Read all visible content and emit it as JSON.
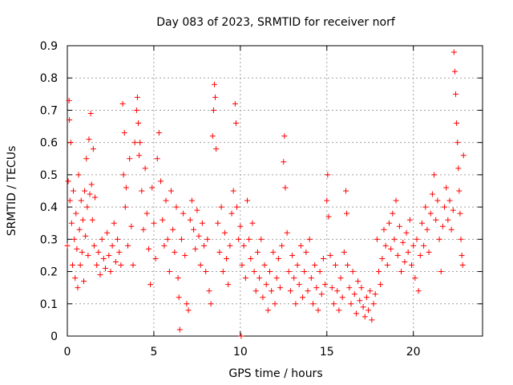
{
  "chart_data": {
    "type": "scatter",
    "title": "Day 083 of 2023, SRMTID for receiver norf",
    "xlabel": "GPS time / hours",
    "ylabel": "SRMTID / TECUs",
    "xlim": [
      0,
      24
    ],
    "ylim": [
      0,
      0.9
    ],
    "xticks": [
      0,
      5,
      10,
      15,
      20
    ],
    "yticks": [
      0,
      0.1,
      0.2,
      0.3,
      0.4,
      0.5,
      0.6,
      0.7,
      0.8,
      0.9
    ],
    "xtick_labels": [
      "0",
      "5",
      "10",
      "15",
      "20"
    ],
    "ytick_labels": [
      "0",
      "0.1",
      "0.2",
      "0.3",
      "0.4",
      "0.5",
      "0.6",
      "0.7",
      "0.8",
      "0.9"
    ],
    "grid": true,
    "marker": "+",
    "color": "#ff0000",
    "series": [
      {
        "name": "SRMTID",
        "points": [
          [
            0.0,
            0.28
          ],
          [
            0.05,
            0.48
          ],
          [
            0.1,
            0.73
          ],
          [
            0.12,
            0.67
          ],
          [
            0.15,
            0.42
          ],
          [
            0.2,
            0.6
          ],
          [
            0.25,
            0.35
          ],
          [
            0.3,
            0.22
          ],
          [
            0.35,
            0.45
          ],
          [
            0.4,
            0.3
          ],
          [
            0.45,
            0.18
          ],
          [
            0.5,
            0.38
          ],
          [
            0.55,
            0.27
          ],
          [
            0.6,
            0.15
          ],
          [
            0.65,
            0.5
          ],
          [
            0.7,
            0.33
          ],
          [
            0.75,
            0.22
          ],
          [
            0.8,
            0.42
          ],
          [
            0.85,
            0.26
          ],
          [
            0.9,
            0.36
          ],
          [
            0.95,
            0.17
          ],
          [
            1.0,
            0.45
          ],
          [
            1.05,
            0.31
          ],
          [
            1.1,
            0.55
          ],
          [
            1.15,
            0.4
          ],
          [
            1.2,
            0.25
          ],
          [
            1.25,
            0.61
          ],
          [
            1.3,
            0.44
          ],
          [
            1.35,
            0.69
          ],
          [
            1.4,
            0.47
          ],
          [
            1.45,
            0.36
          ],
          [
            1.5,
            0.58
          ],
          [
            1.55,
            0.28
          ],
          [
            1.6,
            0.43
          ],
          [
            1.7,
            0.22
          ],
          [
            1.8,
            0.26
          ],
          [
            1.9,
            0.19
          ],
          [
            2.0,
            0.3
          ],
          [
            2.1,
            0.24
          ],
          [
            2.2,
            0.21
          ],
          [
            2.3,
            0.32
          ],
          [
            2.4,
            0.25
          ],
          [
            2.5,
            0.2
          ],
          [
            2.6,
            0.28
          ],
          [
            2.7,
            0.35
          ],
          [
            2.8,
            0.23
          ],
          [
            2.9,
            0.3
          ],
          [
            3.0,
            0.26
          ],
          [
            3.1,
            0.22
          ],
          [
            3.2,
            0.72
          ],
          [
            3.25,
            0.5
          ],
          [
            3.3,
            0.63
          ],
          [
            3.35,
            0.4
          ],
          [
            3.4,
            0.46
          ],
          [
            3.5,
            0.28
          ],
          [
            3.6,
            0.55
          ],
          [
            3.7,
            0.34
          ],
          [
            3.8,
            0.22
          ],
          [
            3.9,
            0.6
          ],
          [
            4.0,
            0.7
          ],
          [
            4.05,
            0.74
          ],
          [
            4.1,
            0.66
          ],
          [
            4.15,
            0.56
          ],
          [
            4.2,
            0.6
          ],
          [
            4.3,
            0.45
          ],
          [
            4.4,
            0.33
          ],
          [
            4.5,
            0.52
          ],
          [
            4.6,
            0.38
          ],
          [
            4.7,
            0.27
          ],
          [
            4.8,
            0.16
          ],
          [
            4.9,
            0.46
          ],
          [
            5.0,
            0.35
          ],
          [
            5.1,
            0.24
          ],
          [
            5.2,
            0.55
          ],
          [
            5.3,
            0.63
          ],
          [
            5.4,
            0.48
          ],
          [
            5.5,
            0.36
          ],
          [
            5.6,
            0.28
          ],
          [
            5.7,
            0.42
          ],
          [
            5.8,
            0.3
          ],
          [
            5.9,
            0.2
          ],
          [
            6.0,
            0.45
          ],
          [
            6.1,
            0.33
          ],
          [
            6.2,
            0.26
          ],
          [
            6.3,
            0.4
          ],
          [
            6.4,
            0.18
          ],
          [
            6.45,
            0.12
          ],
          [
            6.5,
            0.02
          ],
          [
            6.6,
            0.3
          ],
          [
            6.7,
            0.38
          ],
          [
            6.8,
            0.25
          ],
          [
            6.9,
            0.1
          ],
          [
            7.0,
            0.08
          ],
          [
            7.1,
            0.36
          ],
          [
            7.2,
            0.42
          ],
          [
            7.3,
            0.33
          ],
          [
            7.4,
            0.27
          ],
          [
            7.5,
            0.39
          ],
          [
            7.6,
            0.31
          ],
          [
            7.7,
            0.22
          ],
          [
            7.8,
            0.35
          ],
          [
            7.9,
            0.28
          ],
          [
            8.0,
            0.2
          ],
          [
            8.1,
            0.3
          ],
          [
            8.2,
            0.14
          ],
          [
            8.3,
            0.1
          ],
          [
            8.4,
            0.62
          ],
          [
            8.45,
            0.7
          ],
          [
            8.5,
            0.78
          ],
          [
            8.55,
            0.74
          ],
          [
            8.6,
            0.58
          ],
          [
            8.7,
            0.35
          ],
          [
            8.8,
            0.26
          ],
          [
            8.9,
            0.4
          ],
          [
            9.0,
            0.2
          ],
          [
            9.1,
            0.32
          ],
          [
            9.2,
            0.24
          ],
          [
            9.3,
            0.16
          ],
          [
            9.4,
            0.28
          ],
          [
            9.5,
            0.38
          ],
          [
            9.6,
            0.45
          ],
          [
            9.7,
            0.72
          ],
          [
            9.75,
            0.66
          ],
          [
            9.8,
            0.4
          ],
          [
            9.9,
            0.3
          ],
          [
            10.0,
            0.34
          ],
          [
            10.05,
            0.0
          ],
          [
            10.1,
            0.22
          ],
          [
            10.2,
            0.28
          ],
          [
            10.3,
            0.18
          ],
          [
            10.4,
            0.42
          ],
          [
            10.5,
            0.3
          ],
          [
            10.6,
            0.24
          ],
          [
            10.7,
            0.35
          ],
          [
            10.8,
            0.2
          ],
          [
            10.9,
            0.14
          ],
          [
            11.0,
            0.26
          ],
          [
            11.1,
            0.18
          ],
          [
            11.2,
            0.3
          ],
          [
            11.3,
            0.12
          ],
          [
            11.4,
            0.22
          ],
          [
            11.5,
            0.16
          ],
          [
            11.6,
            0.08
          ],
          [
            11.7,
            0.2
          ],
          [
            11.8,
            0.14
          ],
          [
            11.9,
            0.26
          ],
          [
            12.0,
            0.1
          ],
          [
            12.1,
            0.18
          ],
          [
            12.2,
            0.24
          ],
          [
            12.3,
            0.15
          ],
          [
            12.4,
            0.28
          ],
          [
            12.5,
            0.54
          ],
          [
            12.55,
            0.62
          ],
          [
            12.6,
            0.46
          ],
          [
            12.7,
            0.32
          ],
          [
            12.8,
            0.2
          ],
          [
            12.9,
            0.14
          ],
          [
            13.0,
            0.25
          ],
          [
            13.1,
            0.18
          ],
          [
            13.2,
            0.1
          ],
          [
            13.3,
            0.22
          ],
          [
            13.4,
            0.16
          ],
          [
            13.5,
            0.28
          ],
          [
            13.6,
            0.12
          ],
          [
            13.7,
            0.2
          ],
          [
            13.8,
            0.26
          ],
          [
            13.9,
            0.14
          ],
          [
            14.0,
            0.3
          ],
          [
            14.1,
            0.18
          ],
          [
            14.2,
            0.1
          ],
          [
            14.3,
            0.22
          ],
          [
            14.4,
            0.15
          ],
          [
            14.5,
            0.08
          ],
          [
            14.6,
            0.2
          ],
          [
            14.7,
            0.13
          ],
          [
            14.8,
            0.24
          ],
          [
            14.9,
            0.16
          ],
          [
            15.0,
            0.42
          ],
          [
            15.05,
            0.5
          ],
          [
            15.1,
            0.37
          ],
          [
            15.2,
            0.25
          ],
          [
            15.3,
            0.15
          ],
          [
            15.4,
            0.1
          ],
          [
            15.5,
            0.22
          ],
          [
            15.6,
            0.14
          ],
          [
            15.7,
            0.08
          ],
          [
            15.8,
            0.18
          ],
          [
            15.9,
            0.12
          ],
          [
            16.0,
            0.26
          ],
          [
            16.1,
            0.45
          ],
          [
            16.15,
            0.38
          ],
          [
            16.2,
            0.22
          ],
          [
            16.3,
            0.15
          ],
          [
            16.4,
            0.1
          ],
          [
            16.5,
            0.2
          ],
          [
            16.6,
            0.13
          ],
          [
            16.7,
            0.07
          ],
          [
            16.8,
            0.17
          ],
          [
            16.9,
            0.11
          ],
          [
            17.0,
            0.15
          ],
          [
            17.1,
            0.09
          ],
          [
            17.2,
            0.06
          ],
          [
            17.3,
            0.12
          ],
          [
            17.4,
            0.08
          ],
          [
            17.5,
            0.14
          ],
          [
            17.6,
            0.05
          ],
          [
            17.7,
            0.1
          ],
          [
            17.8,
            0.13
          ],
          [
            17.9,
            0.3
          ],
          [
            18.0,
            0.2
          ],
          [
            18.1,
            0.16
          ],
          [
            18.2,
            0.24
          ],
          [
            18.3,
            0.33
          ],
          [
            18.4,
            0.28
          ],
          [
            18.5,
            0.22
          ],
          [
            18.6,
            0.35
          ],
          [
            18.7,
            0.27
          ],
          [
            18.8,
            0.38
          ],
          [
            18.9,
            0.3
          ],
          [
            19.0,
            0.42
          ],
          [
            19.1,
            0.25
          ],
          [
            19.2,
            0.34
          ],
          [
            19.3,
            0.2
          ],
          [
            19.4,
            0.29
          ],
          [
            19.5,
            0.23
          ],
          [
            19.6,
            0.32
          ],
          [
            19.7,
            0.26
          ],
          [
            19.8,
            0.36
          ],
          [
            19.9,
            0.22
          ],
          [
            20.0,
            0.28
          ],
          [
            20.1,
            0.18
          ],
          [
            20.2,
            0.3
          ],
          [
            20.3,
            0.14
          ],
          [
            20.4,
            0.25
          ],
          [
            20.5,
            0.35
          ],
          [
            20.6,
            0.28
          ],
          [
            20.7,
            0.4
          ],
          [
            20.8,
            0.33
          ],
          [
            20.9,
            0.26
          ],
          [
            21.0,
            0.38
          ],
          [
            21.1,
            0.44
          ],
          [
            21.2,
            0.5
          ],
          [
            21.3,
            0.36
          ],
          [
            21.4,
            0.42
          ],
          [
            21.5,
            0.3
          ],
          [
            21.6,
            0.2
          ],
          [
            21.7,
            0.34
          ],
          [
            21.8,
            0.4
          ],
          [
            21.9,
            0.46
          ],
          [
            22.0,
            0.36
          ],
          [
            22.1,
            0.42
          ],
          [
            22.2,
            0.33
          ],
          [
            22.3,
            0.39
          ],
          [
            22.35,
            0.88
          ],
          [
            22.4,
            0.82
          ],
          [
            22.45,
            0.75
          ],
          [
            22.5,
            0.66
          ],
          [
            22.55,
            0.6
          ],
          [
            22.6,
            0.52
          ],
          [
            22.65,
            0.45
          ],
          [
            22.7,
            0.38
          ],
          [
            22.75,
            0.3
          ],
          [
            22.8,
            0.25
          ],
          [
            22.85,
            0.22
          ],
          [
            22.9,
            0.56
          ]
        ]
      }
    ]
  }
}
